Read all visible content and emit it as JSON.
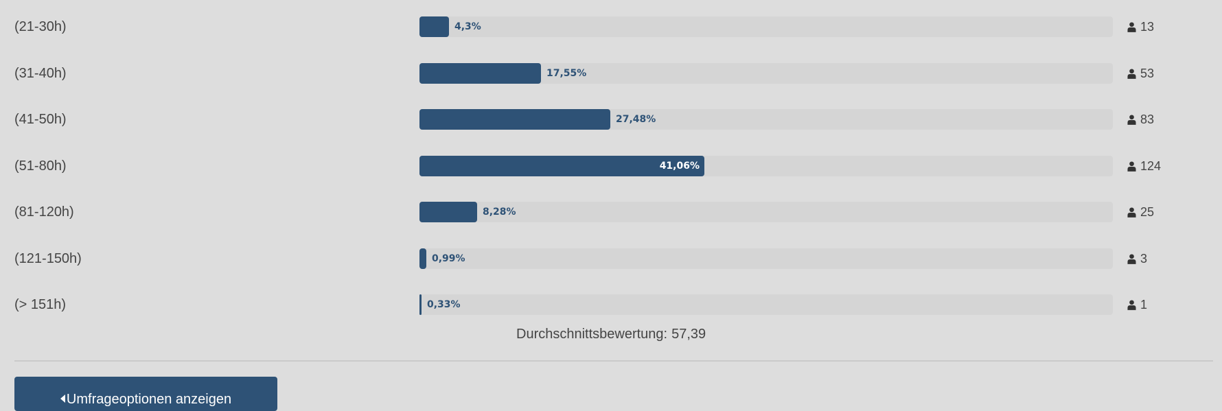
{
  "poll": {
    "rows": [
      {
        "label": "(21-30h)",
        "percent_text": "4,3%",
        "percent": 4.3,
        "votes": "13"
      },
      {
        "label": "(31-40h)",
        "percent_text": "17,55%",
        "percent": 17.55,
        "votes": "53"
      },
      {
        "label": "(41-50h)",
        "percent_text": "27,48%",
        "percent": 27.48,
        "votes": "83"
      },
      {
        "label": "(51-80h)",
        "percent_text": "41,06%",
        "percent": 41.06,
        "votes": "124"
      },
      {
        "label": "(81-120h)",
        "percent_text": "8,28%",
        "percent": 8.28,
        "votes": "25"
      },
      {
        "label": "(121-150h)",
        "percent_text": "0,99%",
        "percent": 0.99,
        "votes": "3"
      },
      {
        "label": "(> 151h)",
        "percent_text": "0,33%",
        "percent": 0.33,
        "votes": "1"
      }
    ],
    "average_label": "Durchschnittsbewertung:",
    "average_value": "57,39",
    "options_button_label": "Umfrageoptionen anzeigen",
    "icons": {
      "votes": "user-icon",
      "button": "caret-left-icon"
    },
    "colors": {
      "bar": "#2e5276",
      "track": "#d5d5d5",
      "background": "#dddddd"
    }
  }
}
